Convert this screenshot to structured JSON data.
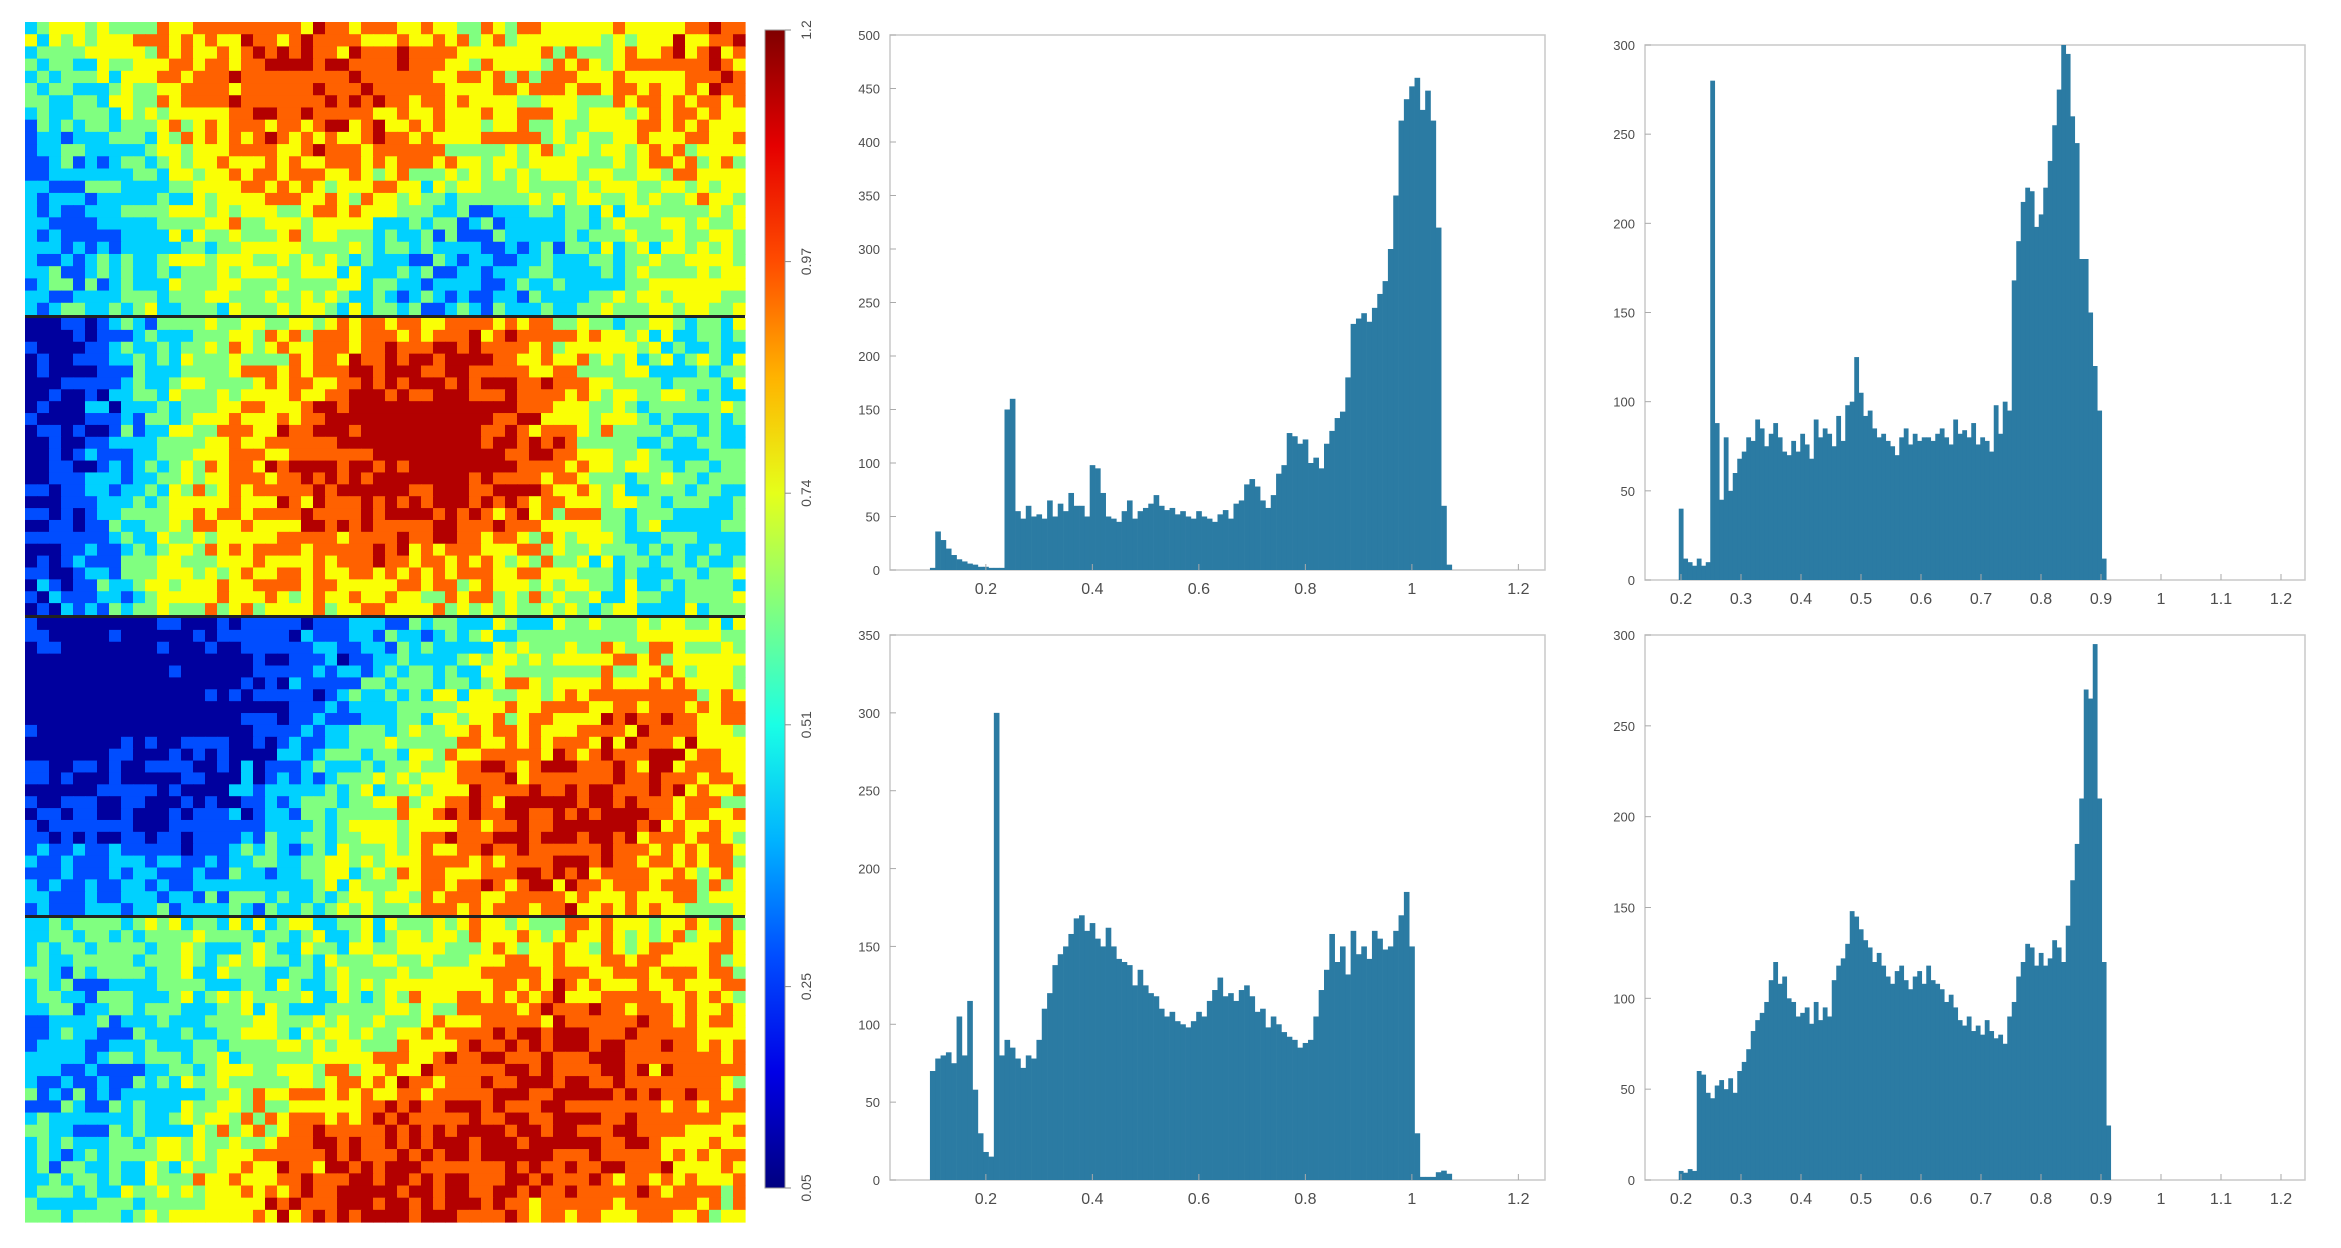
{
  "figure": {
    "heatmap_panels_label": "",
    "colorbar_ticks": [
      "0.05",
      "0.25",
      "0.51",
      "0.74",
      "0.97",
      "1.2"
    ]
  },
  "chart_data": [
    {
      "type": "heatmap",
      "panel": "left-stacked-maps",
      "rows": 4,
      "colormap": "jet",
      "colorbar": {
        "min": 0.05,
        "max": 1.2,
        "ticks": [
          0.05,
          0.25,
          0.51,
          0.74,
          0.97,
          1.2
        ]
      },
      "grid": true
    },
    {
      "type": "bar",
      "panel": "top-left-histogram",
      "x_ticks": [
        "0.2",
        "0.4",
        "0.6",
        "0.8",
        "1",
        "1.2"
      ],
      "y_ticks": [
        "0",
        "50",
        "100",
        "150",
        "200",
        "250",
        "300",
        "350",
        "400",
        "450",
        "500"
      ],
      "xlim": [
        0.02,
        1.25
      ],
      "ylim": [
        0,
        500
      ],
      "color": "#2b7ba3",
      "bin_centers_start": 0.1,
      "bin_width": 0.01,
      "values": [
        2,
        36,
        28,
        20,
        14,
        10,
        8,
        6,
        5,
        3,
        3,
        2,
        2,
        2,
        150,
        160,
        55,
        48,
        60,
        50,
        52,
        48,
        65,
        50,
        62,
        55,
        72,
        60,
        60,
        50,
        98,
        95,
        72,
        50,
        48,
        45,
        55,
        65,
        48,
        55,
        58,
        62,
        70,
        60,
        56,
        58,
        52,
        55,
        50,
        48,
        55,
        50,
        48,
        45,
        52,
        56,
        48,
        62,
        65,
        80,
        85,
        78,
        65,
        58,
        70,
        90,
        98,
        128,
        125,
        118,
        122,
        100,
        105,
        95,
        118,
        130,
        142,
        148,
        180,
        230,
        235,
        240,
        232,
        245,
        258,
        270,
        300,
        350,
        420,
        440,
        452,
        460,
        430,
        448,
        420,
        320,
        60,
        5
      ]
    },
    {
      "type": "bar",
      "panel": "top-right-histogram",
      "x_ticks": [
        "0.2",
        "0.3",
        "0.4",
        "0.5",
        "0.6",
        "0.7",
        "0.8",
        "0.9",
        "1",
        "1.1",
        "1.2"
      ],
      "y_ticks": [
        "0",
        "50",
        "100",
        "150",
        "200",
        "250",
        "300"
      ],
      "xlim": [
        0.14,
        1.24
      ],
      "ylim": [
        0,
        300
      ],
      "color": "#2b7ba3",
      "bin_centers_start": 0.2,
      "bin_width": 0.0075,
      "values": [
        40,
        12,
        10,
        8,
        12,
        8,
        10,
        280,
        88,
        45,
        80,
        50,
        60,
        68,
        72,
        80,
        78,
        90,
        85,
        75,
        82,
        88,
        80,
        72,
        70,
        78,
        72,
        82,
        76,
        68,
        90,
        80,
        85,
        82,
        75,
        92,
        78,
        98,
        100,
        125,
        105,
        92,
        95,
        85,
        80,
        82,
        78,
        75,
        70,
        80,
        85,
        76,
        82,
        78,
        80,
        80,
        78,
        82,
        85,
        80,
        76,
        90,
        82,
        84,
        80,
        88,
        76,
        80,
        78,
        72,
        98,
        82,
        100,
        95,
        168,
        190,
        212,
        220,
        218,
        198,
        205,
        220,
        235,
        255,
        275,
        300,
        295,
        260,
        245,
        180,
        180,
        150,
        120,
        95,
        12
      ]
    },
    {
      "type": "bar",
      "panel": "bottom-left-histogram",
      "x_ticks": [
        "0.2",
        "0.4",
        "0.6",
        "0.8",
        "1",
        "1.2"
      ],
      "y_ticks": [
        "0",
        "50",
        "100",
        "150",
        "200",
        "250",
        "300",
        "350"
      ],
      "xlim": [
        0.02,
        1.25
      ],
      "ylim": [
        0,
        350
      ],
      "color": "#2b7ba3",
      "bin_centers_start": 0.1,
      "bin_width": 0.01,
      "values": [
        70,
        78,
        80,
        82,
        75,
        105,
        80,
        115,
        58,
        30,
        18,
        15,
        300,
        80,
        90,
        85,
        78,
        72,
        80,
        78,
        90,
        110,
        120,
        138,
        145,
        150,
        158,
        168,
        170,
        160,
        165,
        155,
        150,
        162,
        150,
        142,
        140,
        138,
        125,
        135,
        125,
        120,
        118,
        110,
        105,
        108,
        102,
        100,
        98,
        102,
        108,
        105,
        115,
        122,
        130,
        118,
        120,
        115,
        122,
        125,
        118,
        108,
        110,
        98,
        105,
        100,
        95,
        92,
        90,
        85,
        88,
        90,
        105,
        122,
        135,
        158,
        140,
        150,
        132,
        160,
        145,
        150,
        142,
        160,
        155,
        148,
        150,
        160,
        170,
        185,
        150,
        30,
        2,
        2,
        2,
        5,
        6,
        4
      ]
    },
    {
      "type": "bar",
      "panel": "bottom-right-histogram",
      "x_ticks": [
        "0.2",
        "0.3",
        "0.4",
        "0.5",
        "0.6",
        "0.7",
        "0.8",
        "0.9",
        "1",
        "1.1",
        "1.2"
      ],
      "y_ticks": [
        "0",
        "50",
        "100",
        "150",
        "200",
        "250",
        "300"
      ],
      "xlim": [
        0.14,
        1.24
      ],
      "ylim": [
        0,
        300
      ],
      "color": "#2b7ba3",
      "bin_centers_start": 0.2,
      "bin_width": 0.0075,
      "values": [
        5,
        4,
        6,
        5,
        60,
        58,
        48,
        45,
        52,
        55,
        50,
        56,
        48,
        60,
        65,
        72,
        82,
        88,
        92,
        98,
        110,
        120,
        108,
        112,
        100,
        98,
        90,
        92,
        95,
        86,
        98,
        88,
        95,
        90,
        110,
        118,
        122,
        130,
        148,
        145,
        138,
        132,
        128,
        120,
        125,
        118,
        112,
        108,
        115,
        118,
        110,
        105,
        112,
        115,
        108,
        118,
        110,
        108,
        105,
        98,
        102,
        95,
        88,
        85,
        90,
        82,
        85,
        80,
        88,
        82,
        78,
        80,
        75,
        90,
        98,
        112,
        120,
        130,
        128,
        118,
        125,
        118,
        122,
        132,
        128,
        120,
        140,
        165,
        185,
        210,
        270,
        265,
        295,
        210,
        120,
        30
      ]
    }
  ]
}
